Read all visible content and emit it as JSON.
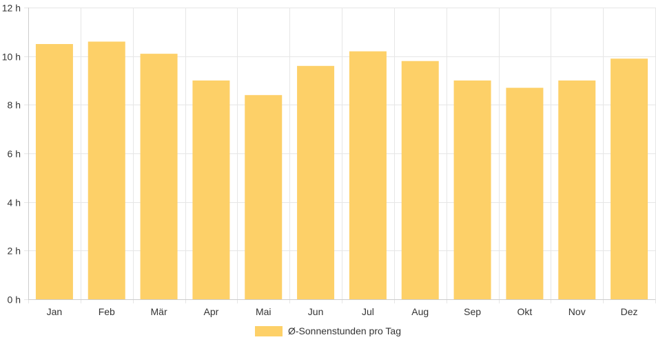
{
  "colors": {
    "bar": "#fdd068",
    "grid": "#e6e6e6",
    "axis": "#cccccc",
    "text": "#333333"
  },
  "chart_data": {
    "type": "bar",
    "categories": [
      "Jan",
      "Feb",
      "Mär",
      "Apr",
      "Mai",
      "Jun",
      "Jul",
      "Aug",
      "Sep",
      "Okt",
      "Nov",
      "Dez"
    ],
    "series": [
      {
        "name": "Ø-Sonnenstunden pro Tag",
        "values": [
          10.5,
          10.6,
          10.1,
          9.0,
          8.4,
          9.6,
          10.2,
          9.8,
          9.0,
          8.7,
          9.0,
          9.9
        ]
      }
    ],
    "ylim": [
      0,
      12
    ],
    "y_ticks": [
      0,
      2,
      4,
      6,
      8,
      10,
      12
    ],
    "y_tick_labels": [
      "0 h",
      "2 h",
      "4 h",
      "6 h",
      "8 h",
      "10 h",
      "12 h"
    ],
    "grid": true,
    "legend_position": "bottom-center",
    "title": "",
    "xlabel": "",
    "ylabel": ""
  }
}
